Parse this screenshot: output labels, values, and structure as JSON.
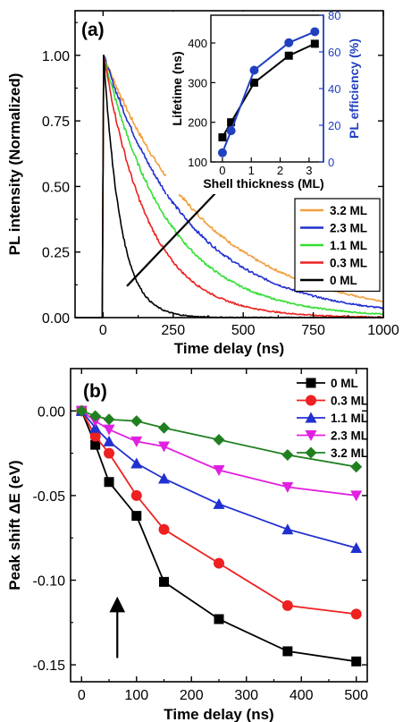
{
  "chart_data": [
    {
      "panel": "(a)",
      "type": "line",
      "xlabel": "Time delay (ns)",
      "ylabel": "PL intensity (Normalized)",
      "xlim": [
        -100,
        1000
      ],
      "ylim": [
        0,
        1.17
      ],
      "xticks": [
        0,
        250,
        500,
        750,
        1000
      ],
      "yticks": [
        0.0,
        0.25,
        0.5,
        0.75,
        1.0
      ],
      "ytick_labels": [
        "0.00",
        "0.25",
        "0.50",
        "0.75",
        "1.00"
      ],
      "grid": false,
      "legend_position": "lower-right",
      "series": [
        {
          "name": "3.2 ML",
          "color": "#f0a040",
          "peak_x": 2,
          "tau": 360
        },
        {
          "name": "2.3 ML",
          "color": "#2030d0",
          "peak_x": 2,
          "tau": 300
        },
        {
          "name": "1.1 ML",
          "color": "#33e033",
          "peak_x": 2,
          "tau": 230
        },
        {
          "name": "0.3 ML",
          "color": "#ee2020",
          "peak_x": 2,
          "tau": 160
        },
        {
          "name": "0 ML",
          "color": "#000000",
          "peak_x": 2,
          "tau": 60
        }
      ],
      "annotation": "increasing shell thickness arrow",
      "inset": {
        "type": "scatter-line",
        "xlabel": "Shell thickness (ML)",
        "ylabel_left": "Lifetime (ns)",
        "ylabel_right": "PL efficiency (%)",
        "xlim": [
          -0.4,
          3.5
        ],
        "ylim_left": [
          100,
          470
        ],
        "ylim_right": [
          0,
          80
        ],
        "xticks": [
          0,
          1,
          2,
          3
        ],
        "yticks_left": [
          100,
          200,
          300,
          400
        ],
        "yticks_right": [
          0,
          20,
          40,
          60,
          80
        ],
        "right_axis_color": "#2040c0",
        "series": [
          {
            "name": "Lifetime",
            "axis": "left",
            "color": "#000000",
            "marker": "square",
            "x": [
              0,
              0.3,
              1.1,
              2.3,
              3.2
            ],
            "y": [
              162,
              200,
              300,
              368,
              398
            ]
          },
          {
            "name": "PL efficiency",
            "axis": "right",
            "color": "#2040c0",
            "marker": "circle",
            "x": [
              0,
              0.3,
              1.1,
              2.3,
              3.2
            ],
            "y": [
              5,
              17,
              50,
              65,
              71
            ]
          }
        ]
      }
    },
    {
      "panel": "(b)",
      "type": "line",
      "xlabel": "Time delay (ns)",
      "ylabel": "Peak shift ΔE (eV)",
      "xlim": [
        -20,
        520
      ],
      "ylim": [
        -0.16,
        0.025
      ],
      "xticks": [
        0,
        100,
        200,
        300,
        400,
        500
      ],
      "yticks": [
        0.0,
        -0.05,
        -0.1,
        -0.15
      ],
      "ytick_labels": [
        "0.00",
        "-0.05",
        "-0.10",
        "-0.15"
      ],
      "grid": false,
      "legend_position": "top-right",
      "x": [
        0,
        25,
        50,
        100,
        150,
        250,
        375,
        500
      ],
      "series": [
        {
          "name": "0 ML",
          "color": "#000000",
          "marker": "square",
          "values": [
            0,
            -0.02,
            -0.042,
            -0.062,
            -0.101,
            -0.123,
            -0.142,
            -0.148
          ]
        },
        {
          "name": "0.3 ML",
          "color": "#ee2020",
          "marker": "circle",
          "values": [
            0,
            -0.015,
            -0.025,
            -0.05,
            -0.07,
            -0.09,
            -0.115,
            -0.12
          ]
        },
        {
          "name": "1.1 ML",
          "color": "#2030d0",
          "marker": "triangle-up",
          "values": [
            0,
            -0.01,
            -0.018,
            -0.031,
            -0.04,
            -0.055,
            -0.07,
            -0.081
          ]
        },
        {
          "name": "2.3 ML",
          "color": "#e020e0",
          "marker": "triangle-down",
          "values": [
            0,
            -0.006,
            -0.011,
            -0.018,
            -0.021,
            -0.035,
            -0.045,
            -0.05
          ]
        },
        {
          "name": "3.2 ML",
          "color": "#208020",
          "marker": "diamond",
          "values": [
            0,
            -0.003,
            -0.005,
            -0.006,
            -0.01,
            -0.017,
            -0.026,
            -0.033
          ]
        }
      ],
      "annotation": "upward arrow"
    }
  ]
}
